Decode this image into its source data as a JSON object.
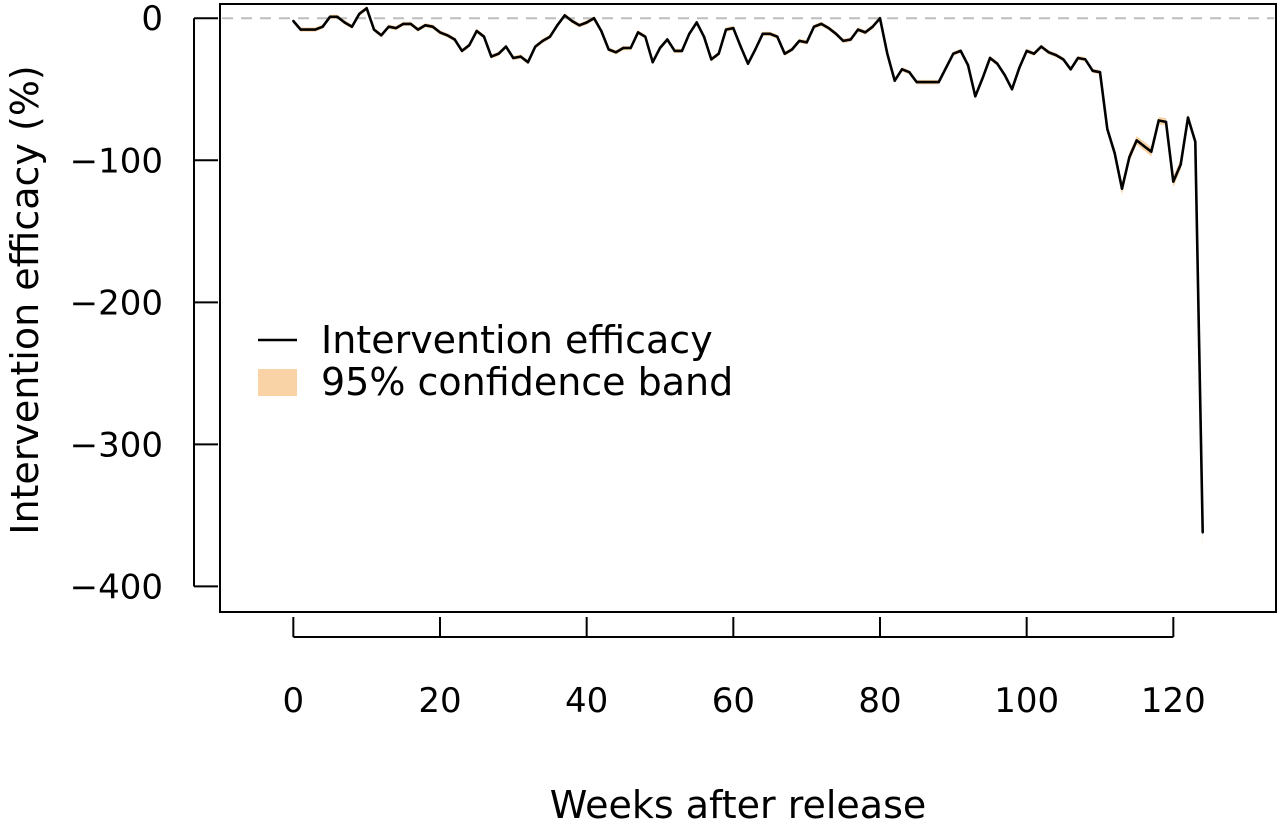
{
  "chart_data": {
    "type": "line",
    "xlabel": "Weeks after release",
    "ylabel": "Intervention efficacy (%)",
    "xlim": [
      -10,
      134
    ],
    "ylim": [
      -418,
      10
    ],
    "xticks": [
      0,
      20,
      40,
      60,
      80,
      100,
      120
    ],
    "yticks": [
      0,
      -100,
      -200,
      -300,
      -400
    ],
    "reference_line": {
      "y": 0,
      "style": "dashed",
      "color": "#bdbdbd"
    },
    "grid": false,
    "legend": {
      "placement": "center-left",
      "entries": [
        {
          "label": "Intervention efficacy",
          "kind": "line",
          "color": "#000000"
        },
        {
          "label": "95% confidence band",
          "kind": "band",
          "color": "#f9d3a6"
        }
      ]
    },
    "series": [
      {
        "name": "Intervention efficacy",
        "color": "#000000",
        "band_color": "#f9d3a6",
        "points": [
          [
            0,
            -2
          ],
          [
            1,
            -8
          ],
          [
            2,
            -8
          ],
          [
            3,
            -8
          ],
          [
            4,
            -6
          ],
          [
            5,
            1
          ],
          [
            6,
            1
          ],
          [
            7,
            -3
          ],
          [
            8,
            -6
          ],
          [
            9,
            3
          ],
          [
            10,
            7
          ],
          [
            11,
            -8
          ],
          [
            12,
            -12
          ],
          [
            13,
            -6
          ],
          [
            14,
            -7
          ],
          [
            15,
            -4
          ],
          [
            16,
            -4
          ],
          [
            17,
            -8
          ],
          [
            18,
            -5
          ],
          [
            19,
            -6
          ],
          [
            20,
            -10
          ],
          [
            21,
            -12
          ],
          [
            22,
            -15
          ],
          [
            23,
            -23
          ],
          [
            24,
            -19
          ],
          [
            25,
            -9
          ],
          [
            26,
            -13
          ],
          [
            27,
            -27
          ],
          [
            28,
            -25
          ],
          [
            29,
            -20
          ],
          [
            30,
            -28
          ],
          [
            31,
            -27
          ],
          [
            32,
            -31
          ],
          [
            33,
            -20
          ],
          [
            34,
            -16
          ],
          [
            35,
            -13
          ],
          [
            36,
            -5
          ],
          [
            37,
            2
          ],
          [
            38,
            -2
          ],
          [
            39,
            -5
          ],
          [
            40,
            -3
          ],
          [
            41,
            0
          ],
          [
            42,
            -9
          ],
          [
            43,
            -22
          ],
          [
            44,
            -24
          ],
          [
            45,
            -21
          ],
          [
            46,
            -21
          ],
          [
            47,
            -10
          ],
          [
            48,
            -13
          ],
          [
            49,
            -31
          ],
          [
            50,
            -21
          ],
          [
            51,
            -15
          ],
          [
            52,
            -23
          ],
          [
            53,
            -23
          ],
          [
            54,
            -11
          ],
          [
            55,
            -3
          ],
          [
            56,
            -13
          ],
          [
            57,
            -29
          ],
          [
            58,
            -25
          ],
          [
            59,
            -8
          ],
          [
            60,
            -7
          ],
          [
            61,
            -20
          ],
          [
            62,
            -32
          ],
          [
            63,
            -22
          ],
          [
            64,
            -11
          ],
          [
            65,
            -11
          ],
          [
            66,
            -13
          ],
          [
            67,
            -25
          ],
          [
            68,
            -22
          ],
          [
            69,
            -16
          ],
          [
            70,
            -17
          ],
          [
            71,
            -6
          ],
          [
            72,
            -4
          ],
          [
            73,
            -7
          ],
          [
            74,
            -11
          ],
          [
            75,
            -16
          ],
          [
            76,
            -15
          ],
          [
            77,
            -8
          ],
          [
            78,
            -10
          ],
          [
            79,
            -6
          ],
          [
            80,
            0
          ],
          [
            81,
            -25
          ],
          [
            82,
            -44
          ],
          [
            83,
            -36
          ],
          [
            84,
            -38
          ],
          [
            85,
            -45
          ],
          [
            86,
            -45
          ],
          [
            87,
            -45
          ],
          [
            88,
            -45
          ],
          [
            89,
            -35
          ],
          [
            90,
            -25
          ],
          [
            91,
            -23
          ],
          [
            92,
            -33
          ],
          [
            93,
            -55
          ],
          [
            94,
            -42
          ],
          [
            95,
            -28
          ],
          [
            96,
            -32
          ],
          [
            97,
            -40
          ],
          [
            98,
            -50
          ],
          [
            99,
            -35
          ],
          [
            100,
            -23
          ],
          [
            101,
            -25
          ],
          [
            102,
            -20
          ],
          [
            103,
            -24
          ],
          [
            104,
            -26
          ],
          [
            105,
            -29
          ],
          [
            106,
            -36
          ],
          [
            107,
            -28
          ],
          [
            108,
            -29
          ],
          [
            109,
            -37
          ],
          [
            110,
            -38
          ],
          [
            111,
            -78
          ],
          [
            112,
            -95
          ],
          [
            113,
            -120
          ],
          [
            114,
            -98
          ],
          [
            115,
            -86
          ],
          [
            116,
            -90
          ],
          [
            117,
            -94
          ],
          [
            118,
            -72
          ],
          [
            119,
            -73
          ],
          [
            120,
            -115
          ],
          [
            121,
            -103
          ],
          [
            122,
            -70
          ],
          [
            123,
            -87
          ],
          [
            124,
            -362
          ]
        ]
      }
    ]
  }
}
